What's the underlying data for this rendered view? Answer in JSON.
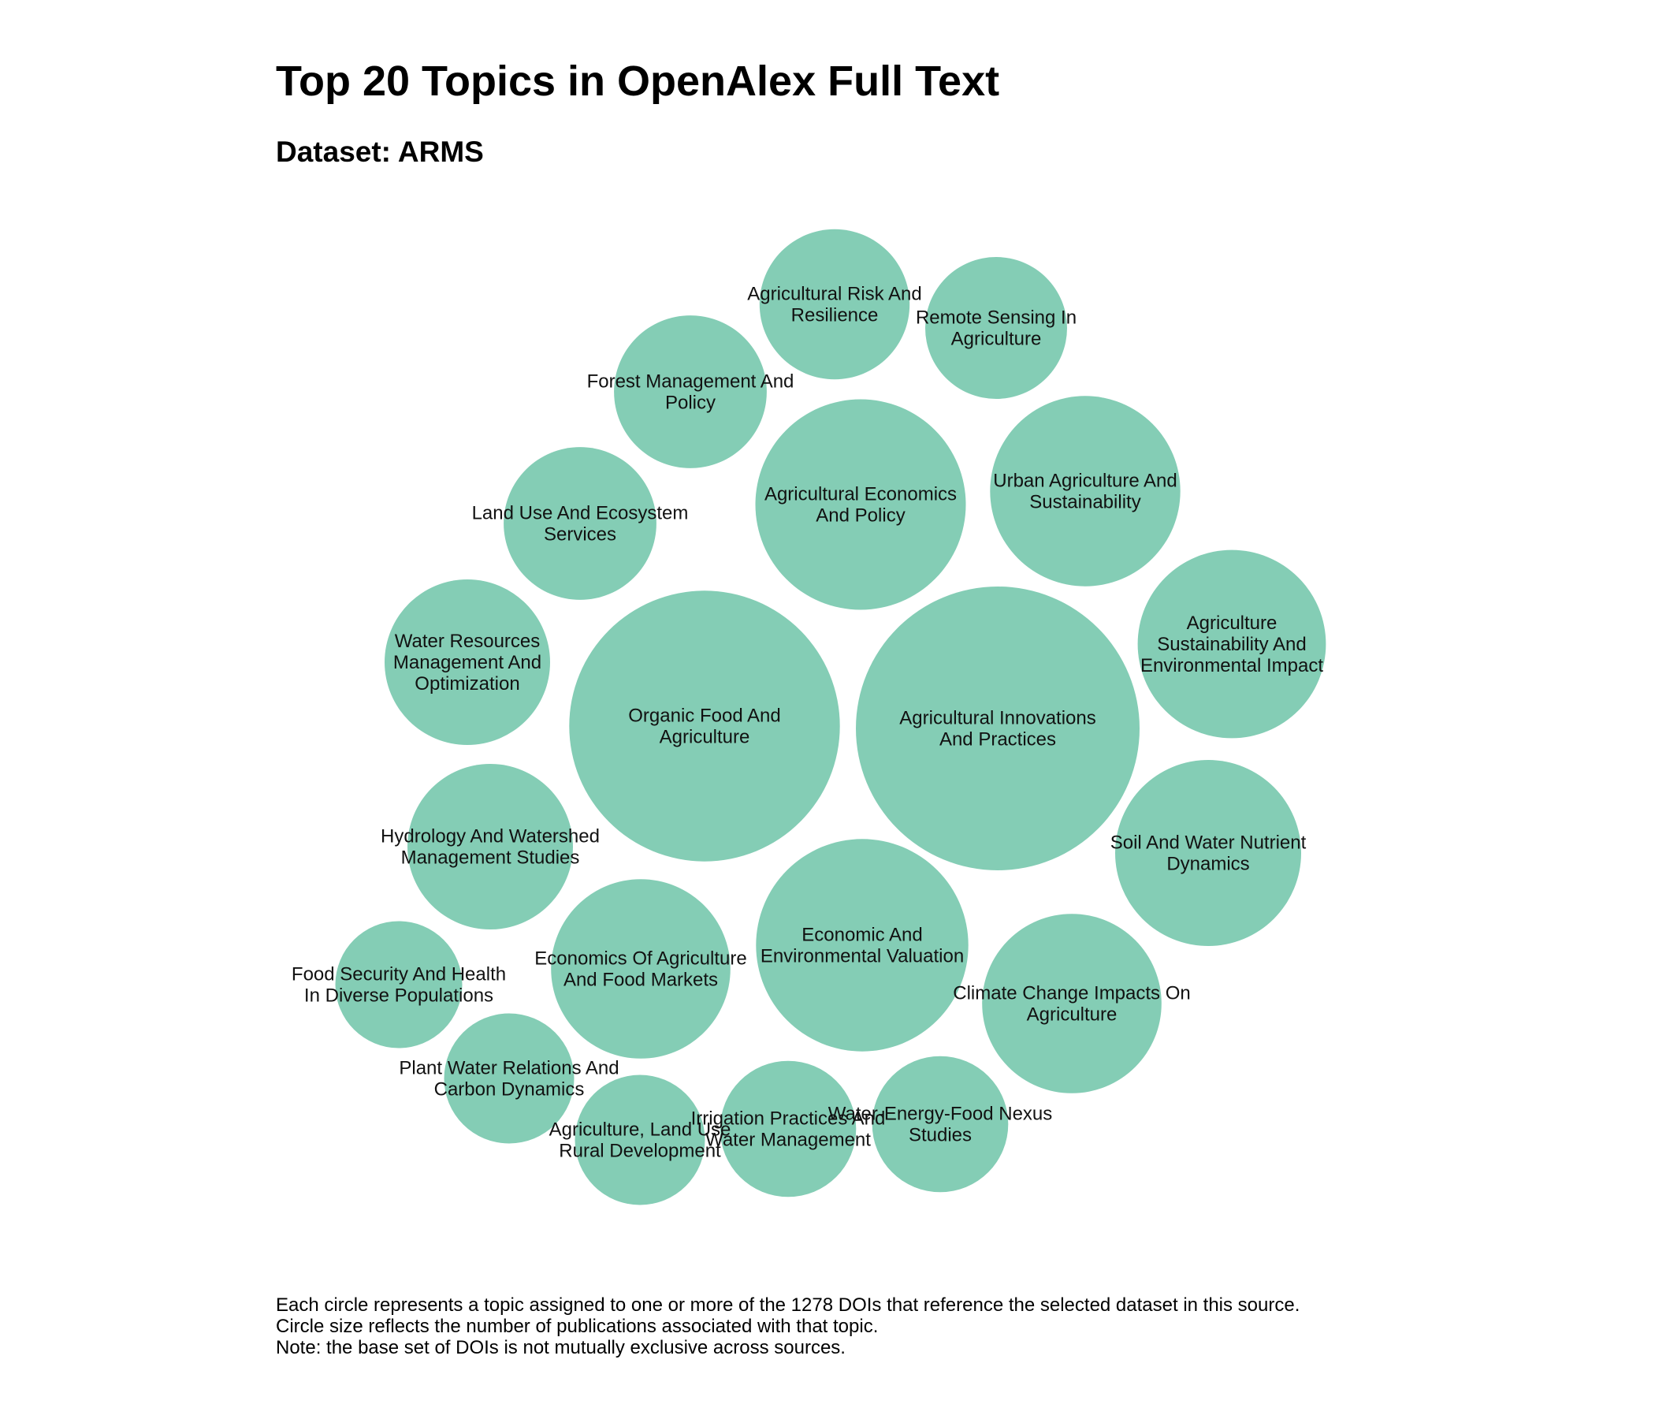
{
  "chart_data": {
    "type": "bubble",
    "title": "Top 20 Topics in OpenAlex Full Text",
    "subtitle": "Dataset: ARMS",
    "bubble_color": "#84cdb5",
    "label_color": "#111111",
    "topics": [
      {
        "label": "Agricultural Innovations And Practices",
        "lines": [
          "Agricultural Innovations",
          "And Practices"
        ],
        "value": 100
      },
      {
        "label": "Organic Food And Agriculture",
        "lines": [
          "Organic Food And",
          "Agriculture"
        ],
        "value": 91
      },
      {
        "label": "Economic And Environmental Valuation",
        "lines": [
          "Economic And",
          "Environmental Valuation"
        ],
        "value": 56
      },
      {
        "label": "Agricultural Economics And Policy",
        "lines": [
          "Agricultural Economics",
          "And Policy"
        ],
        "value": 55
      },
      {
        "label": "Urban Agriculture And Sustainability",
        "lines": [
          "Urban Agriculture And",
          "Sustainability"
        ],
        "value": 45
      },
      {
        "label": "Agriculture Sustainability And Environmental Impact",
        "lines": [
          "Agriculture",
          "Sustainability And",
          "Environmental Impact"
        ],
        "value": 44
      },
      {
        "label": "Soil And Water Nutrient Dynamics",
        "lines": [
          "Soil And Water Nutrient",
          "Dynamics"
        ],
        "value": 43
      },
      {
        "label": "Climate Change Impacts On Agriculture",
        "lines": [
          "Climate Change Impacts On",
          "Agriculture"
        ],
        "value": 40
      },
      {
        "label": "Economics Of Agriculture And Food Markets",
        "lines": [
          "Economics Of Agriculture",
          "And Food Markets"
        ],
        "value": 40
      },
      {
        "label": "Water Resources Management And Optimization",
        "lines": [
          "Water Resources",
          "Management And",
          "Optimization"
        ],
        "value": 34
      },
      {
        "label": "Hydrology And Watershed Management Studies",
        "lines": [
          "Hydrology And Watershed",
          "Management Studies"
        ],
        "value": 34
      },
      {
        "label": "Land Use And Ecosystem Services",
        "lines": [
          "Land Use And Ecosystem",
          "Services"
        ],
        "value": 29
      },
      {
        "label": "Forest Management And Policy",
        "lines": [
          "Forest Management And",
          "Policy"
        ],
        "value": 29
      },
      {
        "label": "Agricultural Risk And Resilience",
        "lines": [
          "Agricultural Risk And",
          "Resilience"
        ],
        "value": 28
      },
      {
        "label": "Remote Sensing In Agriculture",
        "lines": [
          "Remote Sensing In",
          "Agriculture"
        ],
        "value": 25
      },
      {
        "label": "Water-Energy-Food Nexus Studies",
        "lines": [
          "Water-Energy-Food Nexus",
          "Studies"
        ],
        "value": 23
      },
      {
        "label": "Irrigation Practices And Water Management",
        "lines": [
          "Irrigation Practices And",
          "Water Management"
        ],
        "value": 23
      },
      {
        "label": "Agriculture, Land Use Rural Development",
        "lines": [
          "Agriculture, Land Use",
          "Rural Development"
        ],
        "value": 21
      },
      {
        "label": "Plant Water Relations And Carbon Dynamics",
        "lines": [
          "Plant Water Relations And",
          "Carbon Dynamics"
        ],
        "value": 21
      },
      {
        "label": "Food Security And Health In Diverse Populations",
        "lines": [
          "Food Security And Health",
          "In Diverse Populations"
        ],
        "value": 20
      }
    ]
  },
  "footnote": {
    "line1": "Each circle represents a topic assigned to one or more of the 1278 DOIs that reference the selected dataset in this source.",
    "line2": "Circle size reflects the number of publications associated with that topic.",
    "line3": "Note: the base set of DOIs is not mutually exclusive across sources."
  }
}
